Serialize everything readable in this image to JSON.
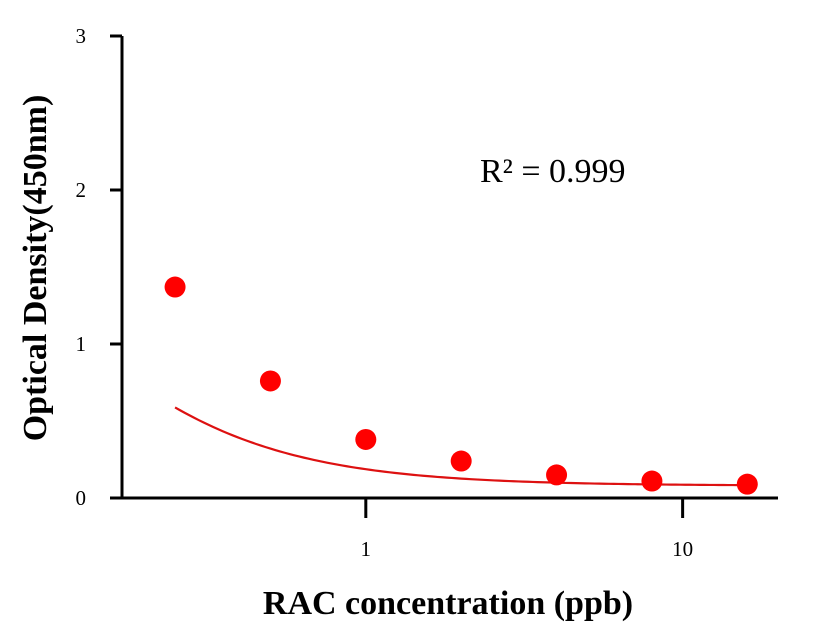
{
  "chart_data": {
    "type": "scatter",
    "title": "",
    "xlabel": "RAC concentration (ppb)",
    "ylabel": "Optical Density(450nm)",
    "x_scale": "log",
    "xlim": [
      0.17,
      20
    ],
    "ylim": [
      0,
      3
    ],
    "x_ticks": [
      1,
      10
    ],
    "x_tick_labels": [
      "1",
      "10"
    ],
    "y_ticks": [
      0,
      1,
      2,
      3
    ],
    "y_tick_labels": [
      "0",
      "1",
      "2",
      "3"
    ],
    "grid": false,
    "legend": "none",
    "color": "#ff0000",
    "curve_color": "#dd1111",
    "annotation": "R² = 0.999",
    "series": [
      {
        "x": [
          0.25,
          0.5,
          1,
          2,
          4,
          8,
          16
        ],
        "y": [
          1.37,
          0.76,
          0.38,
          0.24,
          0.15,
          0.11,
          0.09
        ]
      }
    ],
    "fit_curve": {
      "type": "4PL",
      "top": 2.7,
      "bottom": 0.08,
      "ec50": 0.08,
      "hill": 1.25
    }
  }
}
